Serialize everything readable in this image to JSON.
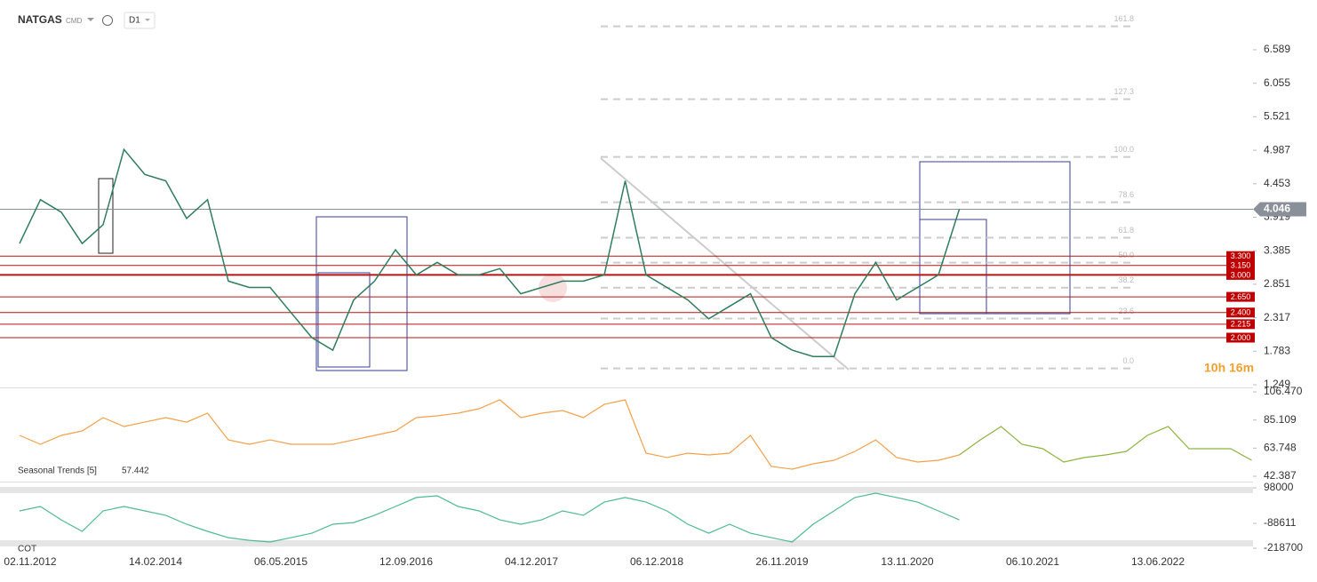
{
  "header": {
    "symbol": "NATGAS",
    "market": "CMD",
    "interval": "D1",
    "timer": "10h 16m"
  },
  "chart_data": [
    {
      "type": "line",
      "color": "#2e7d5b",
      "categories": [
        "02.11.2012",
        null,
        null,
        null,
        null,
        null,
        "14.02.2014",
        null,
        null,
        null,
        null,
        null,
        "06.05.2015",
        null,
        null,
        null,
        null,
        null,
        "12.09.2016",
        null,
        null,
        null,
        null,
        null,
        "04.12.2017",
        null,
        null,
        null,
        null,
        null,
        "06.12.2018",
        null,
        null,
        null,
        null,
        null,
        "26.11.2019",
        null,
        null,
        null,
        null,
        null,
        "13.11.2020",
        null,
        null,
        null,
        null,
        null,
        "06.10.2021",
        null,
        null,
        null,
        null,
        null,
        "13.06.2022",
        null,
        null,
        null,
        null,
        null
      ],
      "values": [
        3.5,
        4.2,
        4.0,
        3.5,
        3.8,
        5.0,
        4.6,
        4.5,
        3.9,
        4.2,
        2.9,
        2.8,
        2.8,
        2.4,
        2.0,
        1.8,
        2.6,
        2.9,
        3.4,
        3.0,
        3.2,
        3.0,
        3.0,
        3.1,
        2.7,
        2.8,
        2.9,
        2.9,
        3.0,
        4.5,
        3.0,
        2.8,
        2.6,
        2.3,
        2.5,
        2.7,
        2.0,
        1.8,
        1.7,
        1.7,
        2.7,
        3.2,
        2.6,
        2.8,
        3.0,
        4.046,
        null,
        null,
        null,
        null,
        null,
        null,
        null,
        null,
        null,
        null,
        null,
        null,
        null,
        null
      ],
      "ylim": [
        1.221,
        7.311
      ],
      "yticks": [
        6.589,
        6.055,
        5.521,
        4.987,
        4.453,
        3.919,
        3.385,
        2.851,
        2.317,
        1.783,
        1.249
      ],
      "last": 4.046,
      "levels": [
        {
          "value": 3.3,
          "label": "3.300"
        },
        {
          "value": 3.15,
          "label": "3.150"
        },
        {
          "value": 3.0,
          "label": "3.000"
        },
        {
          "value": 2.65,
          "label": "2.650"
        },
        {
          "value": 2.4,
          "label": "2.400"
        },
        {
          "value": 2.215,
          "label": "2.215"
        },
        {
          "value": 2.0,
          "label": "2.000"
        }
      ],
      "fib_range": [
        1.51,
        4.88
      ],
      "fib_levels": [
        {
          "value": 0,
          "label": "0.0"
        },
        23.6,
        38.2,
        {
          "value": 50,
          "label": "50.0"
        },
        61.8,
        78.6,
        {
          "value": 100,
          "label": "100.0"
        },
        127.3,
        161.8
      ]
    },
    {
      "type": "line",
      "title": "Seasonal  Trends [5]",
      "current": 57.442,
      "ylim": [
        39.0,
        109.2
      ],
      "yticks": [
        {
          "value": 106.47,
          "label": "106.470"
        },
        85.109,
        63.748,
        42.387
      ],
      "series": [
        {
          "color": "#f5a04a",
          "values": [
            73.4,
            66.7,
            73.4,
            76.8,
            86.9,
            80.2,
            83.5,
            86.9,
            83.5,
            90.3,
            70.0,
            66.7,
            70.0,
            66.7,
            66.7,
            66.7,
            70.0,
            73.4,
            76.8,
            86.9,
            88.3,
            90.3,
            93.7,
            100.4,
            86.9,
            90.3,
            92.3,
            86.9,
            97.0,
            100.4,
            59.9,
            56.6,
            59.9,
            58.6,
            59.9,
            73.4,
            49.8,
            47.8,
            51.8,
            54.5,
            61.3,
            70.0,
            56.6,
            53.2,
            54.5,
            58.6,
            null,
            null,
            null,
            null,
            null,
            null,
            null,
            null,
            null,
            null,
            null,
            null,
            null,
            null
          ]
        },
        {
          "color": "#8bb43c",
          "values": [
            null,
            null,
            null,
            null,
            null,
            null,
            null,
            null,
            null,
            null,
            null,
            null,
            null,
            null,
            null,
            null,
            null,
            null,
            null,
            null,
            null,
            null,
            null,
            null,
            null,
            null,
            null,
            null,
            null,
            null,
            null,
            null,
            null,
            null,
            null,
            null,
            null,
            null,
            null,
            null,
            null,
            null,
            null,
            null,
            null,
            58.6,
            70.0,
            80.2,
            66.7,
            63.3,
            53.2,
            56.6,
            58.6,
            61.3,
            73.4,
            80.2,
            63.3,
            63.3,
            63.3,
            54.5
          ]
        }
      ]
    },
    {
      "type": "line",
      "title": "COT",
      "color": "#4dbb8f",
      "ylim": [
        -232600,
        116600
      ],
      "yticks": [
        98000,
        -88611,
        -218700
      ],
      "values": [
        -23000,
        0,
        -70000,
        -130000,
        -23000,
        0,
        -23000,
        -46000,
        -93000,
        -130000,
        -163000,
        -177000,
        -186000,
        -163000,
        -140000,
        -93000,
        -84000,
        -46000,
        0,
        47000,
        56000,
        0,
        -23000,
        -70000,
        -93000,
        -70000,
        -23000,
        -46000,
        23000,
        47000,
        23000,
        -23000,
        -93000,
        -140000,
        -93000,
        -140000,
        -163000,
        -186000,
        -93000,
        -23000,
        47000,
        70000,
        47000,
        23000,
        -23000,
        -70000,
        null,
        null,
        null,
        null,
        null,
        null,
        null,
        null,
        null,
        null,
        null,
        null,
        null,
        null
      ]
    }
  ]
}
